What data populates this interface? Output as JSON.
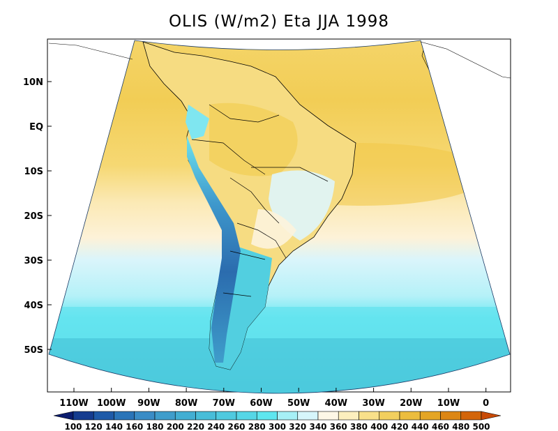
{
  "title": "OLIS (W/m2) Eta JJA 1998",
  "y_axis_labels": [
    "10N",
    "EQ",
    "10S",
    "20S",
    "30S",
    "40S",
    "50S"
  ],
  "x_axis_labels": [
    "110W",
    "100W",
    "90W",
    "80W",
    "70W",
    "60W",
    "50W",
    "40W",
    "30W",
    "20W",
    "10W",
    "0"
  ],
  "colorbar": {
    "values": [
      "100",
      "120",
      "140",
      "160",
      "180",
      "200",
      "220",
      "240",
      "260",
      "280",
      "300",
      "320",
      "340",
      "360",
      "380",
      "400",
      "420",
      "440",
      "460",
      "480",
      "500"
    ],
    "colors": [
      "#0b1c6e",
      "#153c8f",
      "#1e5aa8",
      "#2a74b8",
      "#3a8cc6",
      "#3f9dcb",
      "#42aed2",
      "#48bdd8",
      "#4fcadf",
      "#55d6e6",
      "#5ee6ef",
      "#a6f0f6",
      "#d6f6fb",
      "#fdf7e6",
      "#fcefbe",
      "#f8e08a",
      "#f2cf5e",
      "#ecbd3e",
      "#e4a525",
      "#dc8614",
      "#d3650a",
      "#c94a05"
    ]
  },
  "colors": {
    "ocean_high": "#f3cf57",
    "ocean_mid": "#f8df89",
    "ocean_pale": "#fdf2d6",
    "ocean_cool": "#d6f4fb",
    "ocean_cyan": "#6fe9f2",
    "ocean_teal": "#4fd0e0",
    "land_andes": "#2f6fb0"
  }
}
